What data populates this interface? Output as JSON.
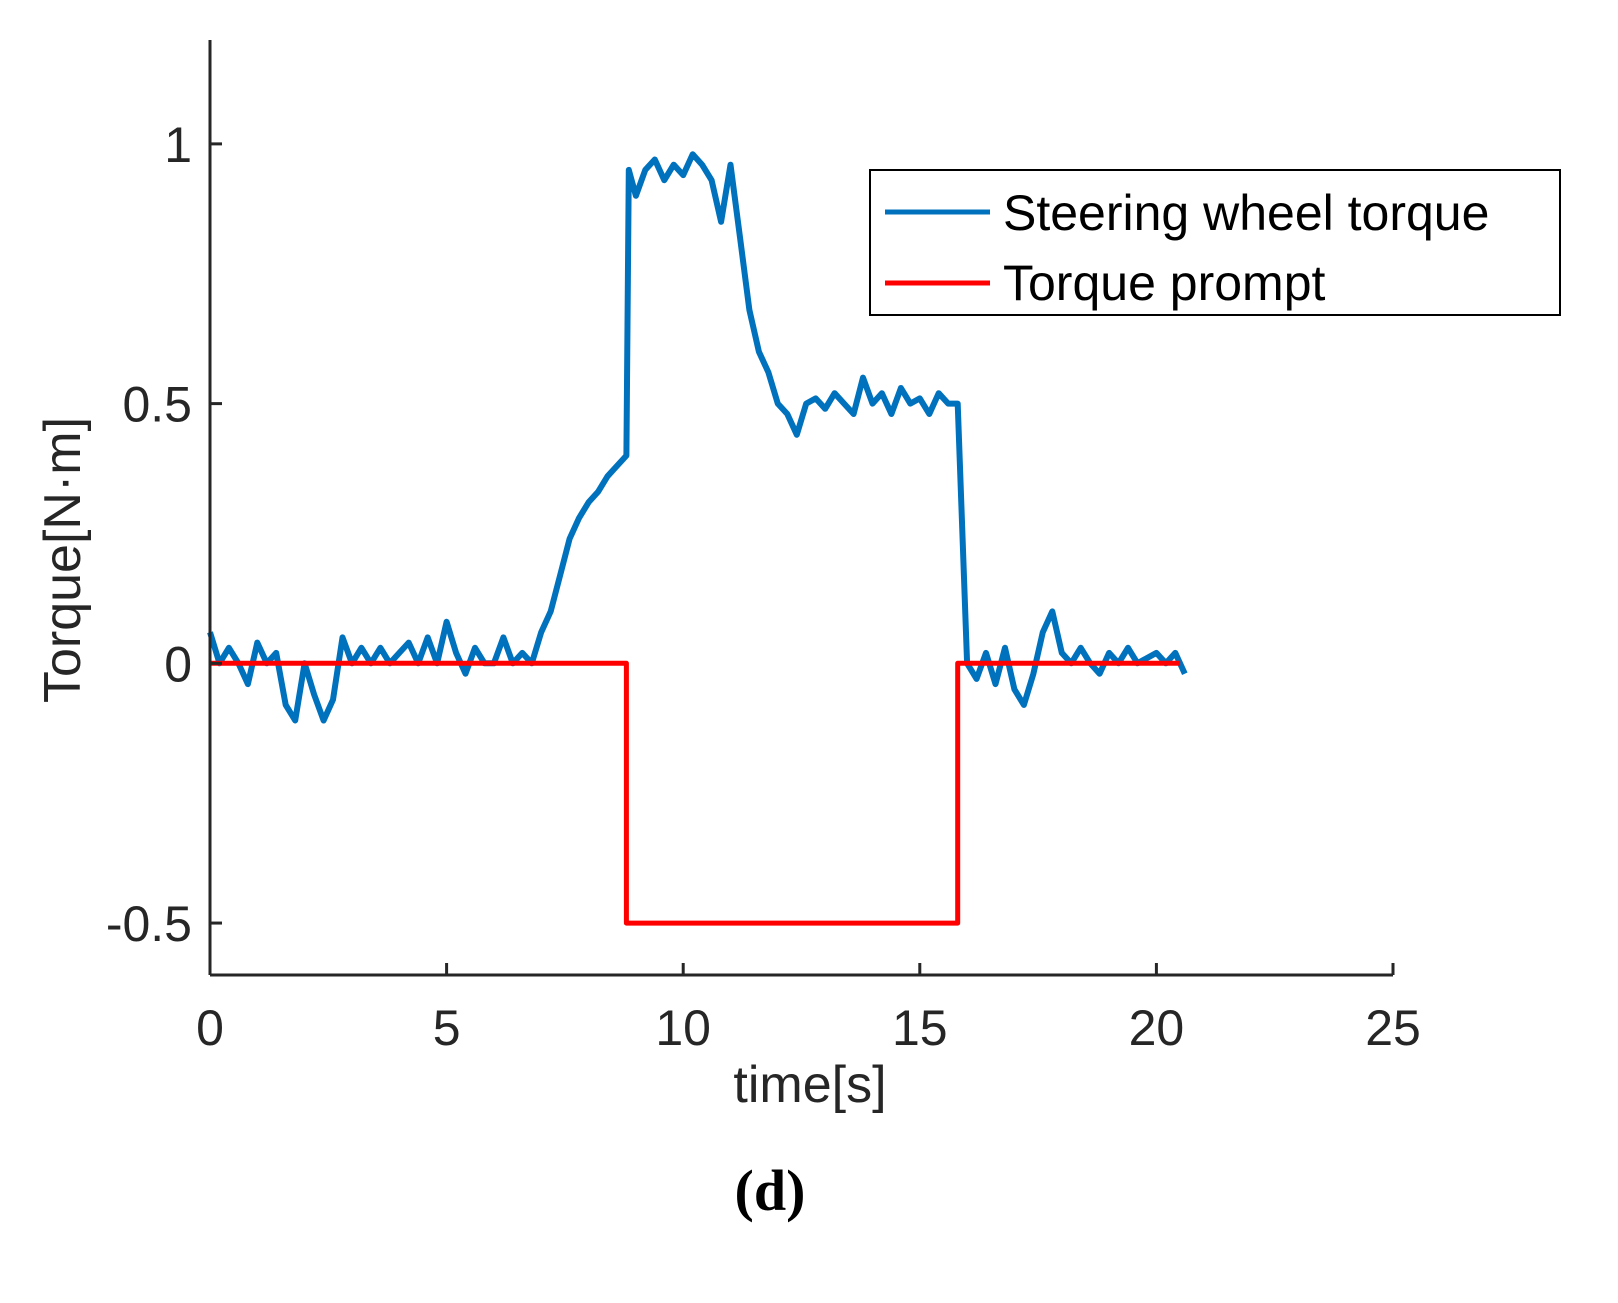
{
  "chart_data": {
    "type": "line",
    "title": "",
    "xlabel": "time[s]",
    "ylabel": "Torque[N·m]",
    "xlim": [
      0,
      25
    ],
    "ylim": [
      -0.6,
      1.2
    ],
    "xticks": [
      0,
      5,
      10,
      15,
      20,
      25
    ],
    "xtick_labels": [
      "0",
      "5",
      "10",
      "15",
      "20",
      "25"
    ],
    "yticks": [
      -0.5,
      0,
      0.5,
      1
    ],
    "ytick_labels": [
      "-0.5",
      "0",
      "0.5",
      "1"
    ],
    "grid": false,
    "legend_position": "top-right",
    "panel_label": "(d)",
    "series": [
      {
        "name": "Steering wheel torque",
        "color": "#0072BD",
        "x": [
          0,
          0.2,
          0.4,
          0.6,
          0.8,
          1.0,
          1.2,
          1.4,
          1.6,
          1.8,
          2.0,
          2.2,
          2.4,
          2.6,
          2.8,
          3.0,
          3.2,
          3.4,
          3.6,
          3.8,
          4.0,
          4.2,
          4.4,
          4.6,
          4.8,
          5.0,
          5.2,
          5.4,
          5.6,
          5.8,
          6.0,
          6.2,
          6.4,
          6.6,
          6.8,
          7.0,
          7.2,
          7.4,
          7.6,
          7.8,
          8.0,
          8.2,
          8.4,
          8.6,
          8.8,
          8.85,
          9.0,
          9.2,
          9.4,
          9.6,
          9.8,
          10.0,
          10.2,
          10.4,
          10.6,
          10.8,
          11.0,
          11.2,
          11.4,
          11.6,
          11.8,
          12.0,
          12.2,
          12.4,
          12.6,
          12.8,
          13.0,
          13.2,
          13.4,
          13.6,
          13.8,
          14.0,
          14.2,
          14.4,
          14.6,
          14.8,
          15.0,
          15.2,
          15.4,
          15.6,
          15.8,
          16.0,
          16.2,
          16.4,
          16.6,
          16.8,
          17.0,
          17.2,
          17.4,
          17.6,
          17.8,
          18.0,
          18.2,
          18.4,
          18.6,
          18.8,
          19.0,
          19.2,
          19.4,
          19.6,
          19.8,
          20.0,
          20.2,
          20.4,
          20.6
        ],
        "y": [
          0.06,
          0.0,
          0.03,
          0.0,
          -0.04,
          0.04,
          0.0,
          0.02,
          -0.08,
          -0.11,
          0.0,
          -0.06,
          -0.11,
          -0.07,
          0.05,
          0.0,
          0.03,
          0.0,
          0.03,
          0.0,
          0.02,
          0.04,
          0.0,
          0.05,
          0.0,
          0.08,
          0.02,
          -0.02,
          0.03,
          0.0,
          0.0,
          0.05,
          0.0,
          0.02,
          0.0,
          0.06,
          0.1,
          0.17,
          0.24,
          0.28,
          0.31,
          0.33,
          0.36,
          0.38,
          0.4,
          0.95,
          0.9,
          0.95,
          0.97,
          0.93,
          0.96,
          0.94,
          0.98,
          0.96,
          0.93,
          0.85,
          0.96,
          0.82,
          0.68,
          0.6,
          0.56,
          0.5,
          0.48,
          0.44,
          0.5,
          0.51,
          0.49,
          0.52,
          0.5,
          0.48,
          0.55,
          0.5,
          0.52,
          0.48,
          0.53,
          0.5,
          0.51,
          0.48,
          0.52,
          0.5,
          0.5,
          0.0,
          -0.03,
          0.02,
          -0.04,
          0.03,
          -0.05,
          -0.08,
          -0.02,
          0.06,
          0.1,
          0.02,
          0.0,
          0.03,
          0.0,
          -0.02,
          0.02,
          0.0,
          0.03,
          0.0,
          0.01,
          0.02,
          0.0,
          0.02,
          -0.02
        ]
      },
      {
        "name": "Torque prompt",
        "color": "#FF0000",
        "x": [
          0,
          8.8,
          8.8,
          15.8,
          15.8,
          20.5
        ],
        "y": [
          0,
          0,
          -0.5,
          -0.5,
          0,
          0
        ]
      }
    ]
  }
}
